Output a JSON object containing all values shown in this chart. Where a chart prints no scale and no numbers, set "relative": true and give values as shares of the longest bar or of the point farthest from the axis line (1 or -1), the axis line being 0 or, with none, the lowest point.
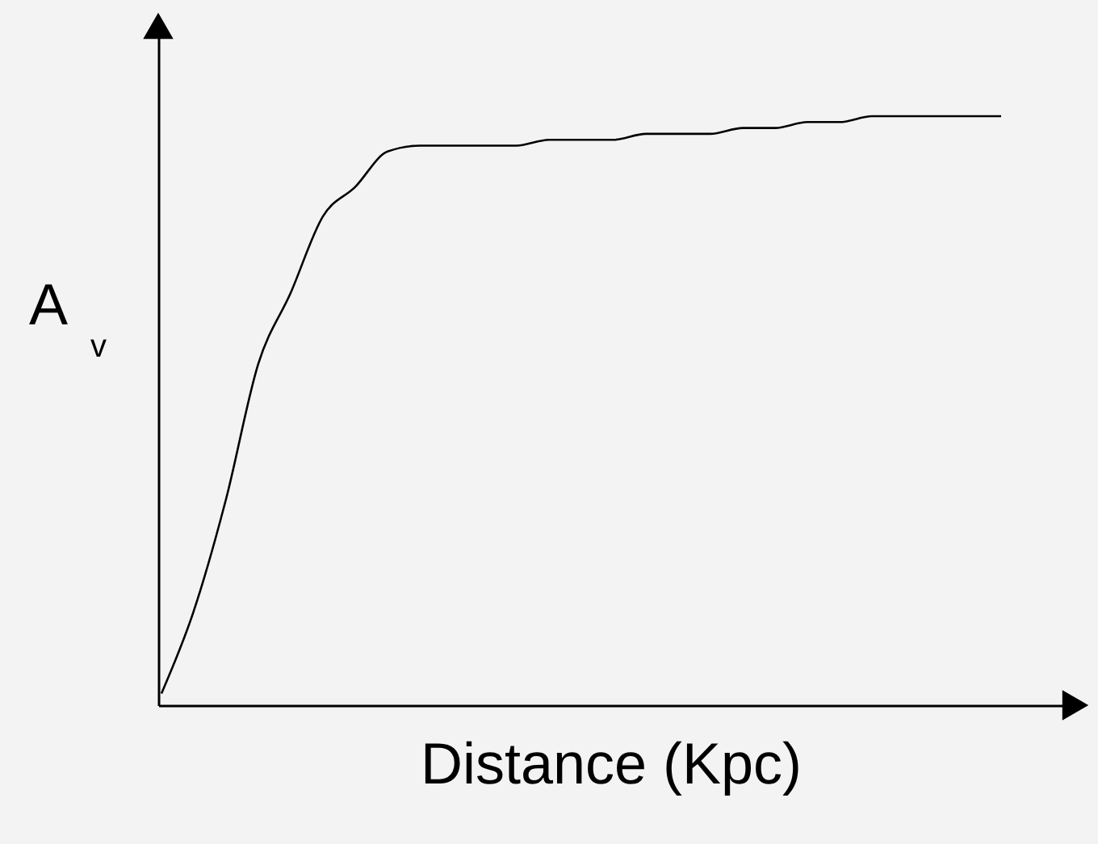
{
  "chart_data": {
    "type": "line",
    "relative": true,
    "xlabel": "Distance (Kpc)",
    "ylabel": "A$_{v}$",
    "grid": false,
    "marker": "none",
    "line_style": "solid",
    "categories": [
      null,
      null,
      null,
      null,
      null,
      null,
      null,
      null,
      null,
      null,
      null,
      null,
      null,
      null,
      null,
      null,
      null,
      null,
      null,
      null,
      null,
      null,
      null,
      null,
      null,
      null,
      null
    ],
    "series": [
      {
        "color": "#000000",
        "values": [
          0.02,
          0.16,
          0.35,
          0.58,
          0.7,
          0.83,
          0.88,
          0.94,
          0.95,
          0.95,
          0.95,
          0.95,
          0.96,
          0.96,
          0.96,
          0.97,
          0.97,
          0.97,
          0.98,
          0.98,
          0.99,
          0.99,
          1.0,
          1.0,
          1.0,
          1.0,
          1.0
        ]
      }
    ]
  }
}
